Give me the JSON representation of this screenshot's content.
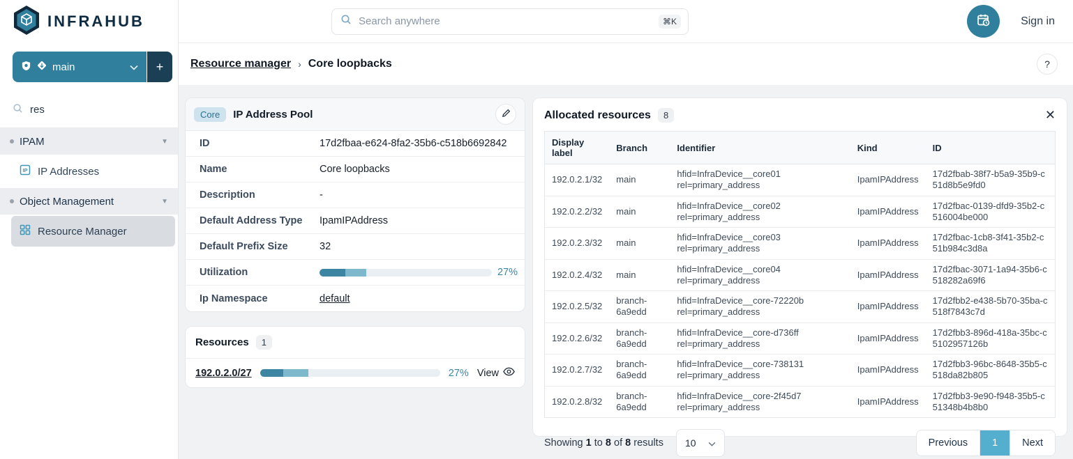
{
  "colors": {
    "accent_teal": "#2f7f9d",
    "dark_navy": "#1b3f55",
    "active_page_blue": "#54aecd",
    "progress_dark": "#3e85a3",
    "progress_light": "#7db8cd",
    "progress_track": "#e9eff3",
    "content_background": "#f1f2f4"
  },
  "topbar": {
    "brand": "INFRAHUB",
    "search_placeholder": "Search anywhere",
    "search_shortcut": "⌘K",
    "sign_in": "Sign in"
  },
  "sidebar": {
    "branch_name": "main",
    "add_branch_label": "+",
    "filter_value": "res",
    "sections": [
      {
        "label": "IPAM"
      },
      {
        "label": "Object Management"
      }
    ],
    "items": [
      {
        "label": "IP Addresses"
      },
      {
        "label": "Resource Manager"
      }
    ]
  },
  "breadcrumb": {
    "parent": "Resource manager",
    "separator": "›",
    "current": "Core loopbacks",
    "help": "?"
  },
  "pool_card": {
    "badge": "Core",
    "title": "IP Address Pool",
    "fields": {
      "id_label": "ID",
      "id_value": "17d2fbaa-e624-8fa2-35b6-c518b6692842",
      "name_label": "Name",
      "name_value": "Core loopbacks",
      "description_label": "Description",
      "description_value": "-",
      "address_type_label": "Default Address Type",
      "address_type_value": "IpamIPAddress",
      "prefix_size_label": "Default Prefix Size",
      "prefix_size_value": "32",
      "utilization_label": "Utilization",
      "utilization_pct_label": "27%",
      "namespace_label": "Ip Namespace",
      "namespace_value": "default"
    },
    "utilization": {
      "dark_pct": 15,
      "light_pct": 12
    }
  },
  "resources_card": {
    "title": "Resources",
    "count": "1",
    "item": {
      "label": "192.0.2.0/27",
      "pct_label": "27%",
      "dark_pct": 13,
      "light_pct": 14,
      "action": "View"
    }
  },
  "allocated": {
    "title": "Allocated resources",
    "count": "8",
    "columns": {
      "display_label": "Display label",
      "branch": "Branch",
      "identifier": "Identifier",
      "kind": "Kind",
      "id": "ID"
    },
    "rows": [
      {
        "display_label": "192.0.2.1/32",
        "branch": "main",
        "identifier_hfid": "hfid=InfraDevice__core01",
        "identifier_rel": "rel=primary_address",
        "kind": "IpamIPAddress",
        "id": "17d2fbab-38f7-b5a9-35b9-c51d8b5e9fd0"
      },
      {
        "display_label": "192.0.2.2/32",
        "branch": "main",
        "identifier_hfid": "hfid=InfraDevice__core02",
        "identifier_rel": "rel=primary_address",
        "kind": "IpamIPAddress",
        "id": "17d2fbac-0139-dfd9-35b2-c516004be000"
      },
      {
        "display_label": "192.0.2.3/32",
        "branch": "main",
        "identifier_hfid": "hfid=InfraDevice__core03",
        "identifier_rel": "rel=primary_address",
        "kind": "IpamIPAddress",
        "id": "17d2fbac-1cb8-3f41-35b2-c51b984c3d8a"
      },
      {
        "display_label": "192.0.2.4/32",
        "branch": "main",
        "identifier_hfid": "hfid=InfraDevice__core04",
        "identifier_rel": "rel=primary_address",
        "kind": "IpamIPAddress",
        "id": "17d2fbac-3071-1a94-35b6-c518282a69f6"
      },
      {
        "display_label": "192.0.2.5/32",
        "branch": "branch-6a9edd",
        "identifier_hfid": "hfid=InfraDevice__core-72220b",
        "identifier_rel": "rel=primary_address",
        "kind": "IpamIPAddress",
        "id": "17d2fbb2-e438-5b70-35ba-c518f7843c7d"
      },
      {
        "display_label": "192.0.2.6/32",
        "branch": "branch-6a9edd",
        "identifier_hfid": "hfid=InfraDevice__core-d736ff",
        "identifier_rel": "rel=primary_address",
        "kind": "IpamIPAddress",
        "id": "17d2fbb3-896d-418a-35bc-c5102957126b"
      },
      {
        "display_label": "192.0.2.7/32",
        "branch": "branch-6a9edd",
        "identifier_hfid": "hfid=InfraDevice__core-738131",
        "identifier_rel": "rel=primary_address",
        "kind": "IpamIPAddress",
        "id": "17d2fbb3-96bc-8648-35b5-c518da82b805"
      },
      {
        "display_label": "192.0.2.8/32",
        "branch": "branch-6a9edd",
        "identifier_hfid": "hfid=InfraDevice__core-2f45d7",
        "identifier_rel": "rel=primary_address",
        "kind": "IpamIPAddress",
        "id": "17d2fbb3-9e90-f948-35b5-c51348b4b8b0"
      }
    ],
    "footer": {
      "prefix": "Showing",
      "from": "1",
      "to_word": "to",
      "to": "8",
      "of_word": "of",
      "total": "8",
      "suffix": "results",
      "page_size": "10",
      "previous": "Previous",
      "page": "1",
      "next": "Next"
    }
  }
}
